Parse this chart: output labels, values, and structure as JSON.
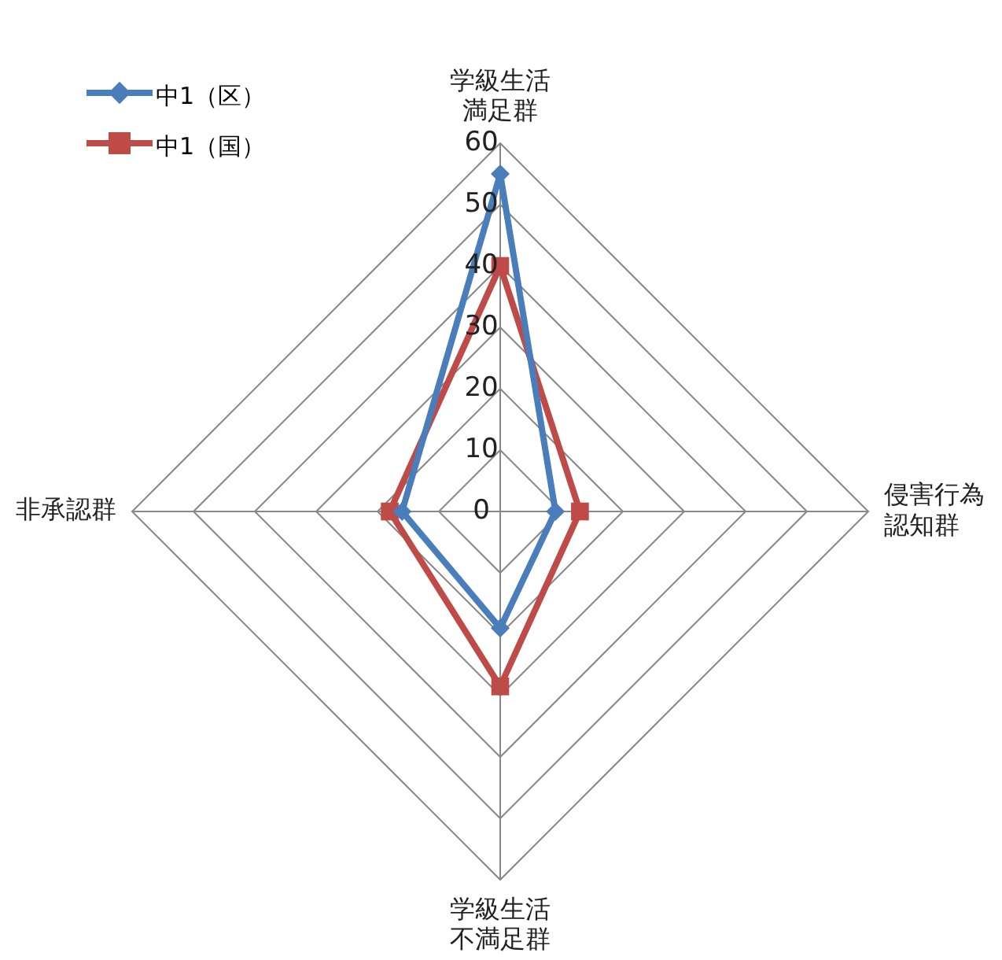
{
  "chart_data": {
    "type": "radar",
    "categories": [
      "学級生活満足群",
      "侵害行為認知群",
      "学級生活不満足群",
      "非承認群"
    ],
    "series": [
      {
        "name": "中1（区）",
        "color": "#4a7ebb",
        "values": [
          55,
          9,
          19,
          16
        ],
        "marker": "diamond"
      },
      {
        "name": "中1（国）",
        "color": "#be4b48",
        "values": [
          40,
          13,
          28.5,
          18
        ],
        "marker": "square"
      }
    ],
    "ylim": [
      0,
      60
    ],
    "yticks": [
      0,
      10,
      20,
      30,
      40,
      50,
      60
    ],
    "grid": true,
    "legend": "top left"
  }
}
